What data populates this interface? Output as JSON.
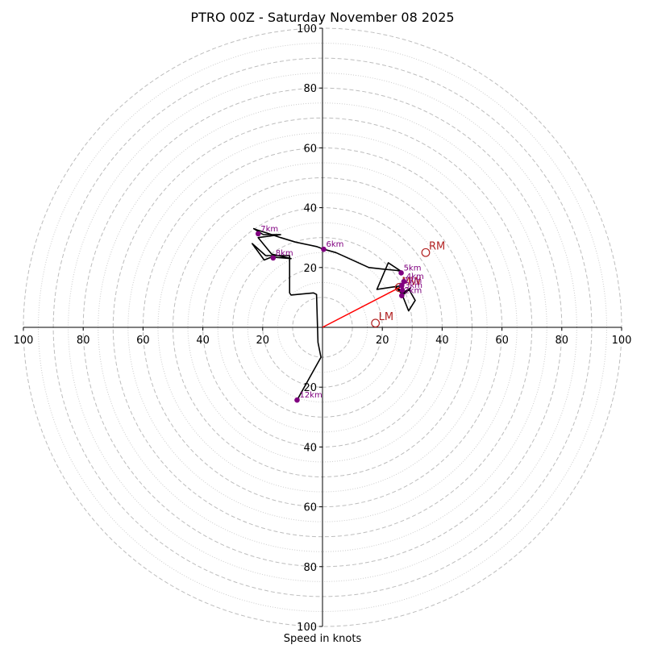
{
  "chart_data": {
    "type": "hodograph",
    "title": "PTRO 00Z - Saturday November 08 2025",
    "xlabel": "Speed in knots",
    "range": [
      -100,
      100
    ],
    "ring_major": [
      10,
      20,
      30,
      40,
      50,
      60,
      70,
      80,
      90,
      100
    ],
    "ring_minor": [
      15,
      25,
      35,
      45,
      55,
      65,
      75,
      85,
      95
    ],
    "x_ticks": [
      {
        "value": -100,
        "label": "100"
      },
      {
        "value": -80,
        "label": "80"
      },
      {
        "value": -60,
        "label": "60"
      },
      {
        "value": -40,
        "label": "40"
      },
      {
        "value": -20,
        "label": "20"
      },
      {
        "value": 20,
        "label": "20"
      },
      {
        "value": 40,
        "label": "40"
      },
      {
        "value": 60,
        "label": "60"
      },
      {
        "value": 80,
        "label": "80"
      },
      {
        "value": 100,
        "label": "100"
      }
    ],
    "y_ticks": [
      {
        "value": 100,
        "label": "100"
      },
      {
        "value": 80,
        "label": "80"
      },
      {
        "value": 60,
        "label": "60"
      },
      {
        "value": 40,
        "label": "40"
      },
      {
        "value": 20,
        "label": "20"
      },
      {
        "value": -20,
        "label": "20"
      },
      {
        "value": -40,
        "label": "40"
      },
      {
        "value": -60,
        "label": "60"
      },
      {
        "value": -80,
        "label": "80"
      },
      {
        "value": -100,
        "label": "100"
      }
    ],
    "trace_color": "#000000",
    "point_color": "#800080",
    "mean_wind_color": "#ff0000",
    "storm_motion_color": "#b22222",
    "hodograph_u": [
      26.8,
      28.8,
      31.0,
      29.0,
      26.3,
      29.5,
      26.9,
      24.5,
      27.8,
      25.0,
      27.0,
      18.2,
      22.0,
      26.5,
      25.0,
      20.0,
      15.5,
      4.5,
      0.5,
      -2.0,
      -9.0,
      -14.0,
      -18.5,
      -21.7,
      -23.0,
      -19.8,
      -14.0,
      -21.5,
      -17.0,
      -10.5,
      -17.0,
      -19.5,
      -23.5,
      -19.0,
      -11.0,
      -11.0,
      -10.5,
      -3.0,
      -2.0,
      -1.5,
      -0.5,
      -8.5
    ],
    "hodograph_v": [
      10.5,
      5.5,
      9.0,
      12.5,
      11.2,
      13.2,
      10.8,
      13.4,
      11.5,
      13.0,
      14.0,
      12.7,
      21.6,
      18.6,
      19.0,
      19.5,
      20.0,
      25.0,
      26.1,
      27.0,
      28.5,
      30.0,
      31.5,
      32.5,
      33.0,
      31.0,
      31.0,
      30.0,
      24.5,
      23.0,
      23.5,
      22.5,
      28.0,
      24.0,
      24.0,
      11.5,
      10.8,
      11.5,
      11.0,
      -5.0,
      -10.0,
      -24.3
    ],
    "heights": [
      {
        "label": "1km",
        "u": 26.5,
        "v": 14.0
      },
      {
        "label": "2km",
        "u": 26.5,
        "v": 10.6
      },
      {
        "label": "3km",
        "u": 26.7,
        "v": 12.4
      },
      {
        "label": "4km",
        "u": 27.2,
        "v": 15.3
      },
      {
        "label": "5km",
        "u": 26.3,
        "v": 18.2
      },
      {
        "label": "6km",
        "u": 0.4,
        "v": 26.1
      },
      {
        "label": "7km",
        "u": -21.5,
        "v": 31.3
      },
      {
        "label": "8km",
        "u": -16.5,
        "v": 23.2
      },
      {
        "label": "12km",
        "u": -8.5,
        "v": -24.3
      }
    ],
    "mean_wind": {
      "label": "MW",
      "u": 25.7,
      "v": 13.3
    },
    "storm_motions": [
      {
        "label": "RM",
        "u": 34.5,
        "v": 25.0
      },
      {
        "label": "LM",
        "u": 17.7,
        "v": 1.4
      }
    ]
  }
}
